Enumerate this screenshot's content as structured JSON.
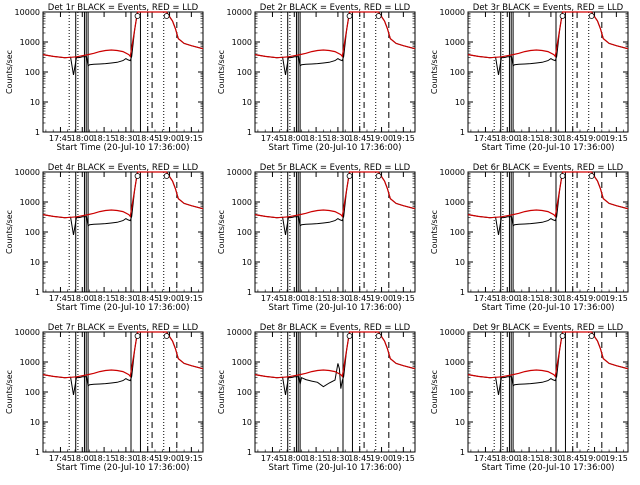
{
  "chart_data": {
    "type": "line",
    "layout": "3x3 grid",
    "ylabel": "Counts/sec",
    "xlabel": "Start Time (20-Jul-10 17:36:00)",
    "yscale": "log",
    "ylim": [
      1,
      10000
    ],
    "y_tick_labels": [
      "1",
      "10",
      "100",
      "1000",
      "10000"
    ],
    "x_tick_labels": [
      "17:45",
      "18:00",
      "18:15",
      "18:30",
      "18:45",
      "19:00",
      "19:15"
    ],
    "x_tick_minutes": [
      -15,
      0,
      15,
      30,
      45,
      60,
      75
    ],
    "xlim_minutes": [
      -27,
      83
    ],
    "x_unit": "minutes relative to 18:00",
    "series_colors": {
      "events": "#000000",
      "lld": "#cc0000"
    },
    "solid_markers_minutes": [
      -4.5,
      1.5,
      2.7,
      4.0,
      33.5,
      40.0
    ],
    "dotted_markers_minutes": [
      -9,
      -3,
      45,
      56
    ],
    "dashed_markers_minutes": [
      48,
      65
    ],
    "lld": {
      "x": [
        -27,
        -20,
        -12,
        -8,
        -4,
        0,
        4,
        8,
        12,
        16,
        20,
        24,
        28,
        32,
        33,
        36,
        38,
        40,
        42,
        44,
        46,
        50,
        55,
        58,
        60,
        62,
        64,
        66,
        70,
        75,
        80,
        83
      ],
      "y": [
        380,
        330,
        300,
        310,
        320,
        350,
        380,
        420,
        480,
        520,
        540,
        520,
        480,
        380,
        330,
        2500,
        10000,
        10000,
        10000,
        10000,
        10000,
        10000,
        10000,
        10000,
        7000,
        5000,
        2800,
        1300,
        900,
        750,
        650,
        600
      ]
    },
    "events_x": [
      -27,
      -20,
      -12,
      -8,
      -6,
      -4,
      -3,
      -1,
      0,
      3,
      4,
      5,
      8,
      12,
      16,
      20,
      24,
      28,
      30,
      31,
      32,
      33,
      34,
      36,
      38,
      40,
      42,
      44,
      46,
      50,
      55,
      58,
      60,
      62,
      64,
      66,
      70,
      75,
      80,
      83
    ],
    "panels": [
      {
        "title": "Det 1r BLACK = Events, RED = LLD",
        "events_y": [
          380,
          330,
          300,
          310,
          80,
          310,
          300,
          310,
          320,
          320,
          160,
          175,
          180,
          185,
          190,
          200,
          210,
          240,
          280,
          260,
          250,
          240,
          330,
          2500,
          10000,
          10000,
          10000,
          10000,
          10000,
          10000,
          10000,
          10000,
          7000,
          5000,
          2800,
          1300,
          900,
          750,
          650,
          600
        ]
      },
      {
        "title": "Det 2r BLACK = Events, RED = LLD",
        "events_y": [
          380,
          330,
          300,
          310,
          80,
          310,
          300,
          310,
          320,
          320,
          160,
          175,
          180,
          185,
          190,
          200,
          210,
          240,
          280,
          260,
          250,
          240,
          330,
          2500,
          10000,
          10000,
          10000,
          10000,
          10000,
          10000,
          10000,
          10000,
          7000,
          5000,
          2800,
          1300,
          900,
          750,
          650,
          600
        ]
      },
      {
        "title": "Det 3r BLACK = Events, RED = LLD",
        "events_y": [
          380,
          330,
          300,
          310,
          80,
          310,
          300,
          310,
          320,
          320,
          160,
          175,
          180,
          185,
          190,
          200,
          210,
          240,
          280,
          260,
          250,
          240,
          330,
          2500,
          10000,
          10000,
          10000,
          10000,
          10000,
          10000,
          10000,
          10000,
          7000,
          5000,
          2800,
          1300,
          900,
          750,
          650,
          600
        ]
      },
      {
        "title": "Det 4r BLACK = Events, RED = LLD",
        "events_y": [
          380,
          330,
          300,
          310,
          80,
          310,
          300,
          310,
          320,
          320,
          160,
          175,
          180,
          185,
          190,
          200,
          210,
          240,
          280,
          260,
          250,
          240,
          330,
          2500,
          10000,
          10000,
          10000,
          10000,
          10000,
          10000,
          10000,
          10000,
          7000,
          5000,
          2800,
          1300,
          900,
          750,
          650,
          600
        ]
      },
      {
        "title": "Det 5r BLACK = Events, RED = LLD",
        "events_y": [
          380,
          330,
          300,
          310,
          80,
          310,
          300,
          310,
          320,
          320,
          160,
          175,
          180,
          185,
          190,
          200,
          210,
          240,
          280,
          260,
          250,
          240,
          330,
          2500,
          10000,
          10000,
          10000,
          10000,
          10000,
          10000,
          10000,
          10000,
          7000,
          5000,
          2800,
          1300,
          900,
          750,
          650,
          600
        ]
      },
      {
        "title": "Det 6r BLACK = Events, RED = LLD",
        "events_y": [
          380,
          330,
          300,
          310,
          80,
          310,
          300,
          310,
          320,
          320,
          160,
          175,
          180,
          185,
          190,
          200,
          210,
          240,
          280,
          260,
          250,
          240,
          330,
          2500,
          10000,
          10000,
          10000,
          10000,
          10000,
          10000,
          10000,
          10000,
          7000,
          5000,
          2800,
          1300,
          900,
          750,
          650,
          600
        ]
      },
      {
        "title": "Det 7r BLACK = Events, RED = LLD",
        "events_y": [
          380,
          330,
          300,
          310,
          80,
          310,
          300,
          310,
          320,
          320,
          160,
          175,
          180,
          185,
          190,
          200,
          210,
          240,
          280,
          260,
          250,
          240,
          330,
          2500,
          10000,
          10000,
          10000,
          10000,
          10000,
          10000,
          10000,
          10000,
          7000,
          5000,
          2800,
          1300,
          900,
          750,
          650,
          600
        ]
      },
      {
        "title": "Det 8r BLACK = Events, RED = LLD",
        "events_y": [
          380,
          330,
          300,
          310,
          80,
          310,
          300,
          310,
          320,
          320,
          180,
          300,
          260,
          230,
          210,
          150,
          200,
          250,
          900,
          600,
          130,
          240,
          330,
          2500,
          10000,
          10000,
          10000,
          10000,
          10000,
          10000,
          10000,
          10000,
          7000,
          5000,
          2800,
          1300,
          900,
          750,
          650,
          600
        ]
      },
      {
        "title": "Det 9r BLACK = Events, RED = LLD",
        "events_y": [
          380,
          330,
          300,
          310,
          80,
          310,
          300,
          310,
          320,
          320,
          160,
          175,
          180,
          185,
          190,
          200,
          210,
          240,
          280,
          260,
          250,
          240,
          330,
          2500,
          10000,
          10000,
          10000,
          10000,
          10000,
          10000,
          10000,
          10000,
          7000,
          5000,
          2800,
          1300,
          900,
          750,
          650,
          600
        ]
      }
    ]
  }
}
